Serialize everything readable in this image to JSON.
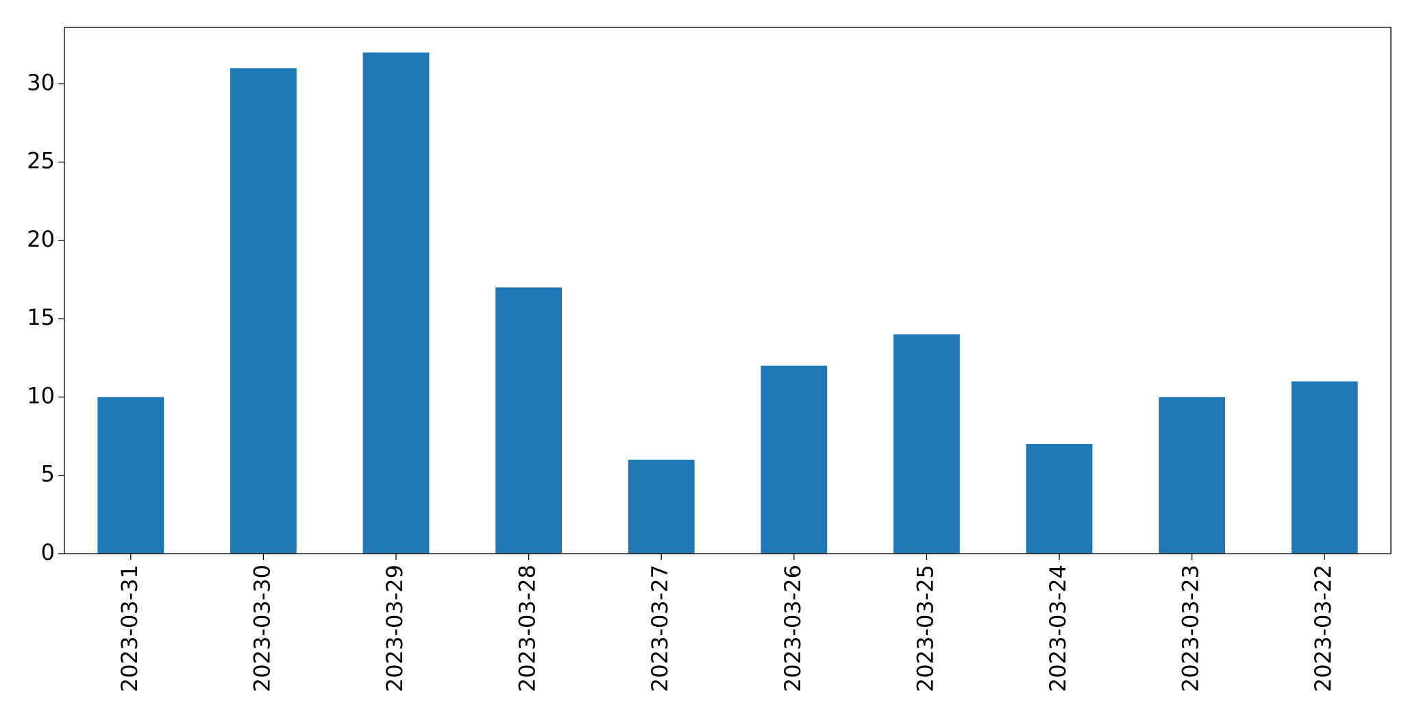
{
  "chart_data": {
    "type": "bar",
    "categories": [
      "2023-03-31",
      "2023-03-30",
      "2023-03-29",
      "2023-03-28",
      "2023-03-27",
      "2023-03-26",
      "2023-03-25",
      "2023-03-24",
      "2023-03-23",
      "2023-03-22"
    ],
    "values": [
      10,
      31,
      32,
      17,
      6,
      12,
      14,
      7,
      10,
      11
    ],
    "color": "#1f77b4",
    "ylim": [
      0,
      33.6
    ],
    "yticks": [
      0,
      5,
      10,
      15,
      20,
      25,
      30
    ],
    "grid": false
  }
}
